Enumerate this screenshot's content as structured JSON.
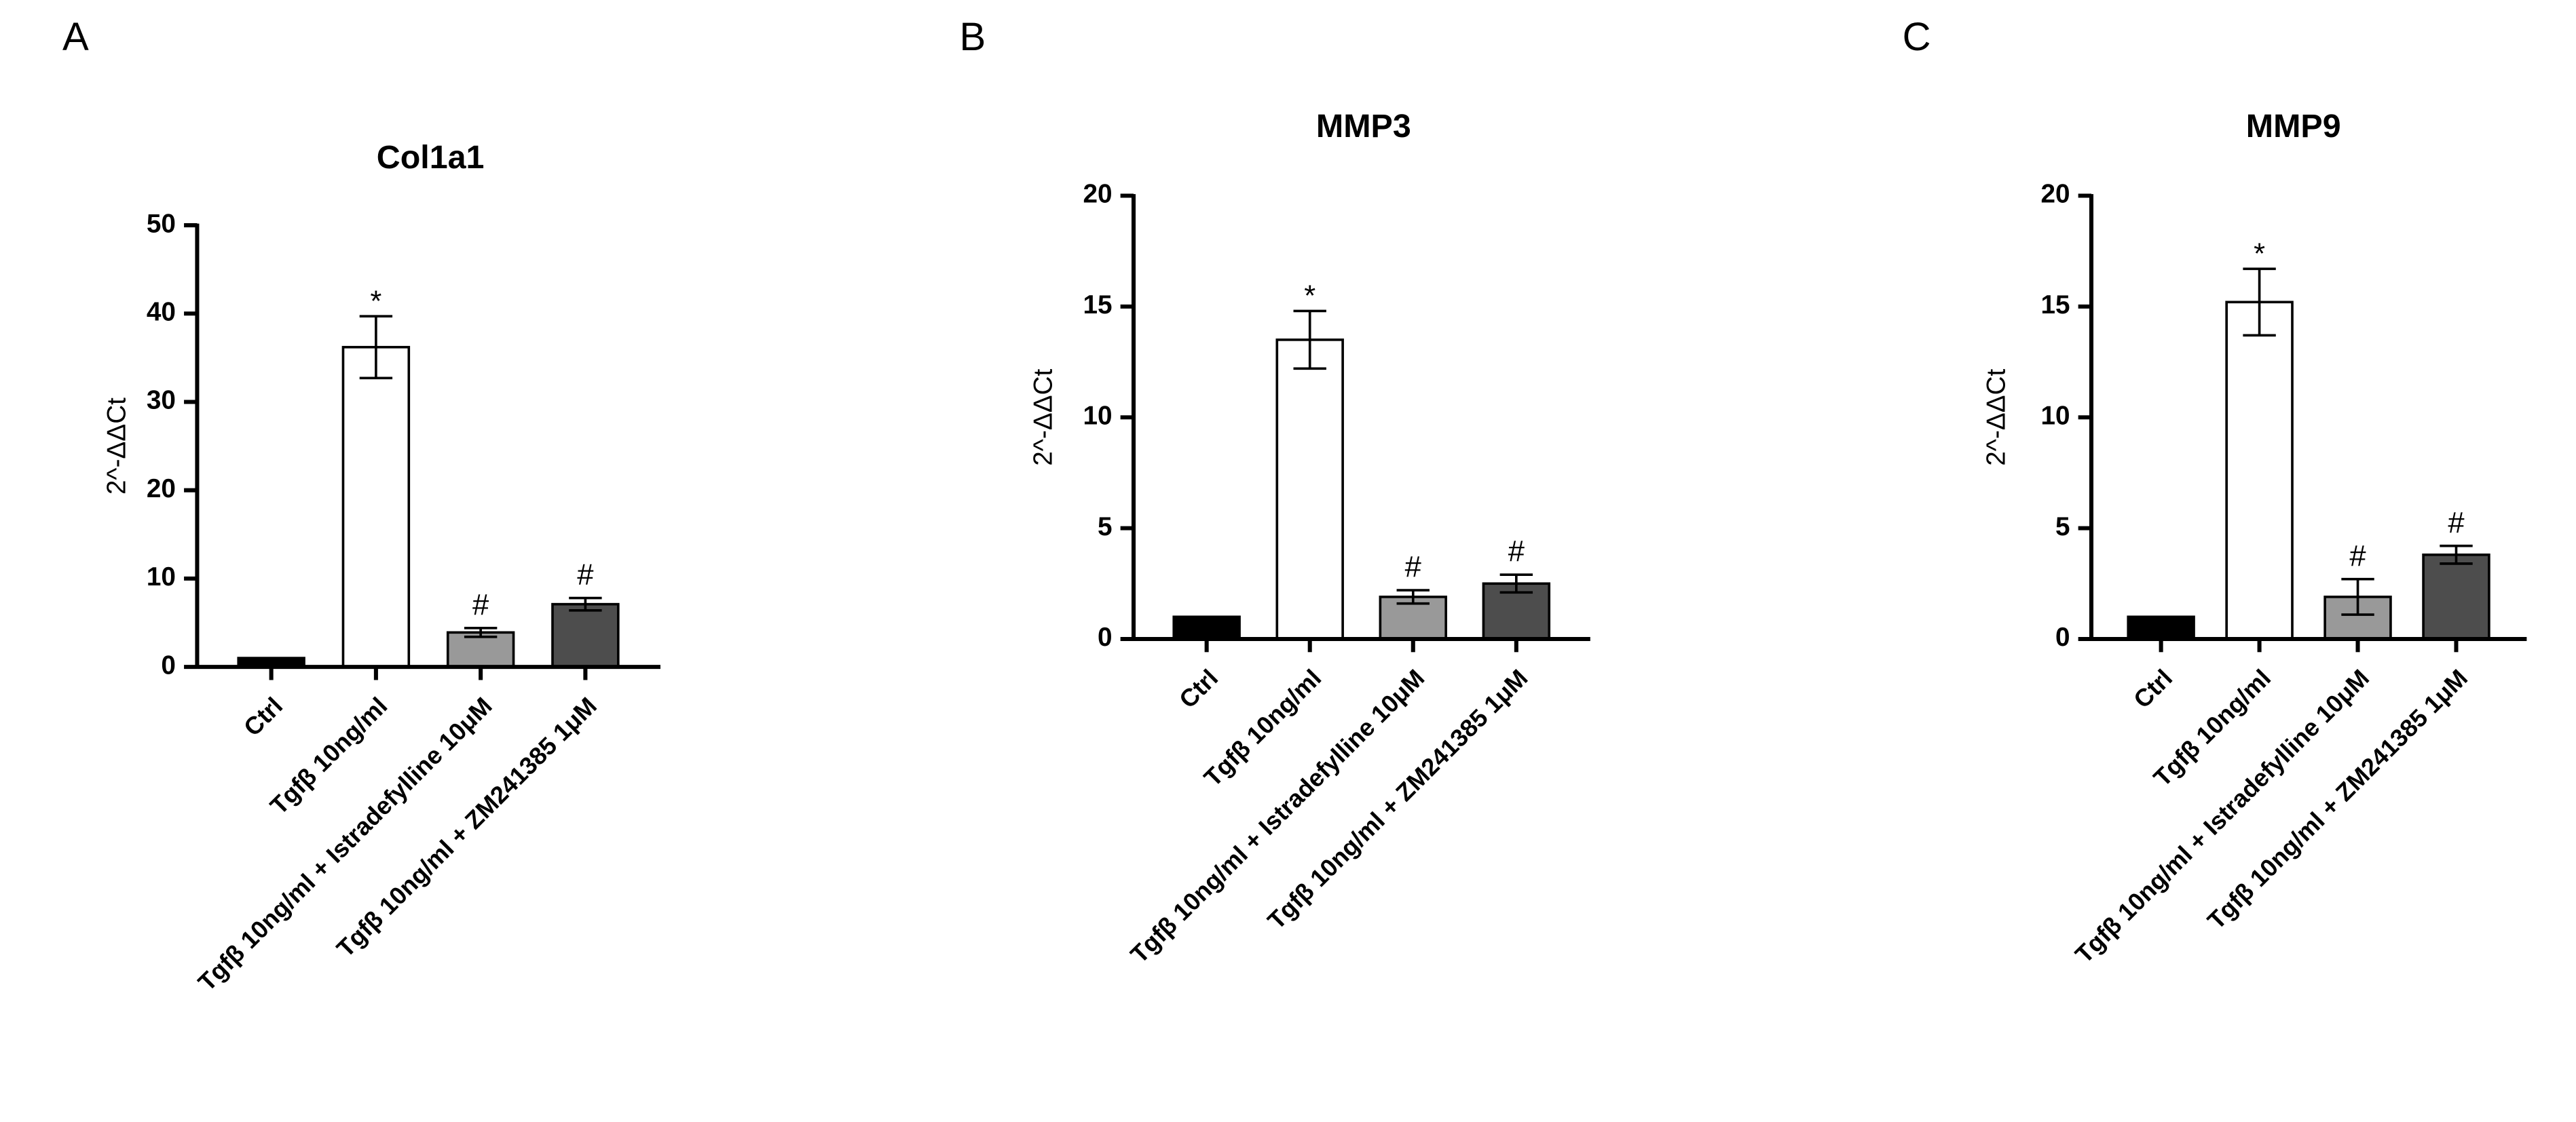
{
  "chart_data": [
    {
      "type": "bar",
      "panel": "A",
      "title": "Col1a1",
      "y_label": "2^-ΔΔCt",
      "categories": [
        "Ctrl",
        "Tgfβ 10ng/ml",
        "Tgfβ 10ng/ml + Istradefylline 10μM",
        "Tgfβ 10ng/ml + ZM241385 1μM"
      ],
      "values": [
        1.0,
        36.2,
        3.9,
        7.1
      ],
      "errors": [
        0,
        3.5,
        0.5,
        0.7
      ],
      "annotations": [
        null,
        "*",
        "#",
        "#"
      ],
      "colors": [
        "#000000",
        "#ffffff",
        "#999999",
        "#4d4d4d"
      ],
      "ylim": [
        0,
        50
      ],
      "yticks": [
        0,
        10,
        20,
        30,
        40,
        50
      ]
    },
    {
      "type": "bar",
      "panel": "B",
      "title": "MMP3",
      "y_label": "2^-ΔΔCt",
      "categories": [
        "Ctrl",
        "Tgfβ 10ng/ml",
        "Tgfβ 10ng/ml + Istradefylline 10μM",
        "Tgfβ 10ng/ml + ZM241385 1μM"
      ],
      "values": [
        1.0,
        13.5,
        1.9,
        2.5
      ],
      "errors": [
        0,
        1.3,
        0.3,
        0.4
      ],
      "annotations": [
        null,
        "*",
        "#",
        "#"
      ],
      "colors": [
        "#000000",
        "#ffffff",
        "#999999",
        "#4d4d4d"
      ],
      "ylim": [
        0,
        20
      ],
      "yticks": [
        0,
        5,
        10,
        15,
        20
      ]
    },
    {
      "type": "bar",
      "panel": "C",
      "title": "MMP9",
      "y_label": "2^-ΔΔCt",
      "categories": [
        "Ctrl",
        "Tgfβ 10ng/ml",
        "Tgfβ 10ng/ml + Istradefylline 10μM",
        "Tgfβ 10ng/ml + ZM241385 1μM"
      ],
      "values": [
        1.0,
        15.2,
        1.9,
        3.8
      ],
      "errors": [
        0,
        1.5,
        0.8,
        0.4
      ],
      "annotations": [
        null,
        "*",
        "#",
        "#"
      ],
      "colors": [
        "#000000",
        "#ffffff",
        "#999999",
        "#4d4d4d"
      ],
      "ylim": [
        0,
        20
      ],
      "yticks": [
        0,
        5,
        10,
        15,
        20
      ]
    }
  ]
}
